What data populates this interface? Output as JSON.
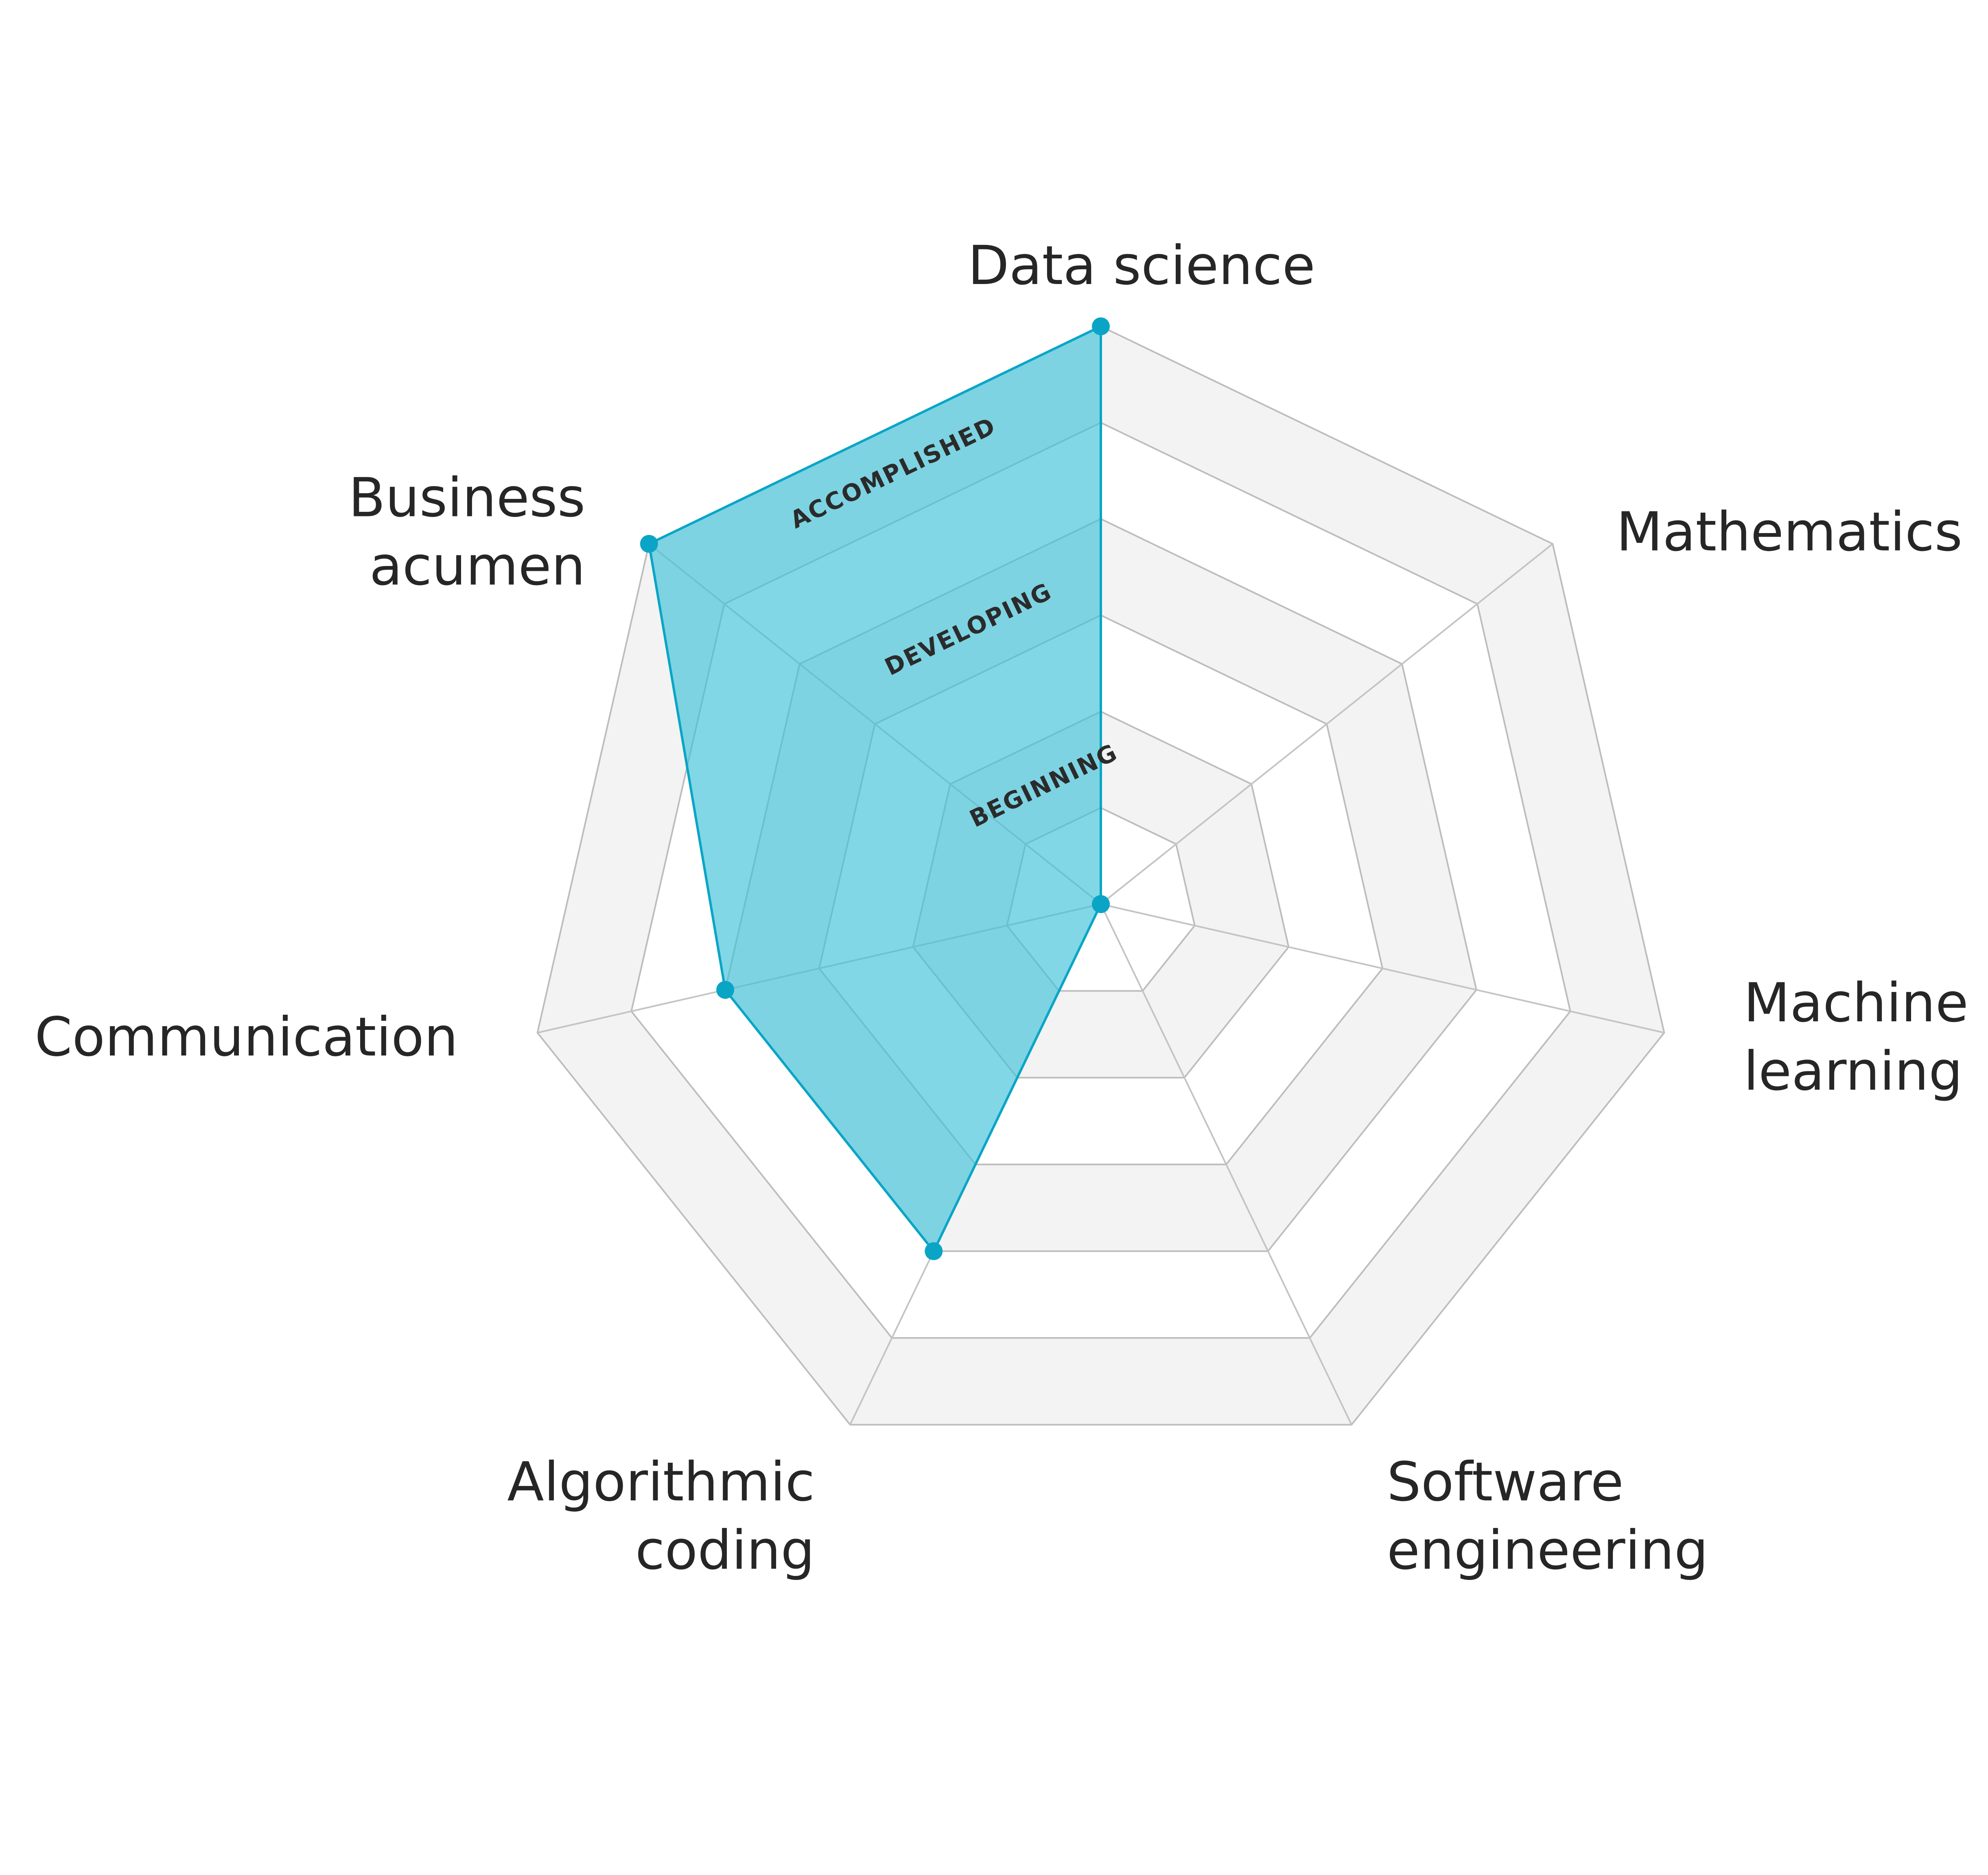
{
  "chart_data": {
    "type": "radar",
    "axes": [
      {
        "key": "data_science",
        "lines": [
          "Data science"
        ]
      },
      {
        "key": "mathematics",
        "lines": [
          "Mathematics"
        ]
      },
      {
        "key": "machine_learning",
        "lines": [
          "Machine",
          "learning"
        ]
      },
      {
        "key": "software_engineering",
        "lines": [
          "Software",
          "engineering"
        ]
      },
      {
        "key": "algorithmic_coding",
        "lines": [
          "Algorithmic",
          "coding"
        ]
      },
      {
        "key": "communication",
        "lines": [
          "Communication"
        ]
      },
      {
        "key": "business_acumen",
        "lines": [
          "Business",
          "acumen"
        ]
      }
    ],
    "levels": [
      {
        "label": "BEGINNING",
        "range": [
          1,
          2
        ]
      },
      {
        "label": "DEVELOPING",
        "range": [
          3,
          4
        ]
      },
      {
        "label": "ACCOMPLISHED",
        "range": [
          5,
          6
        ]
      }
    ],
    "scale_max": 6,
    "grid_rings": 6,
    "series": [
      {
        "values": [
          6,
          0,
          0,
          0,
          4,
          4,
          6
        ]
      }
    ],
    "colors": {
      "series_fill": "#3ec1d8",
      "series_stroke": "#0aa5c6",
      "band_fill": "#f3f3f3",
      "grid": "#bdbdbd",
      "text": "#262626"
    }
  }
}
